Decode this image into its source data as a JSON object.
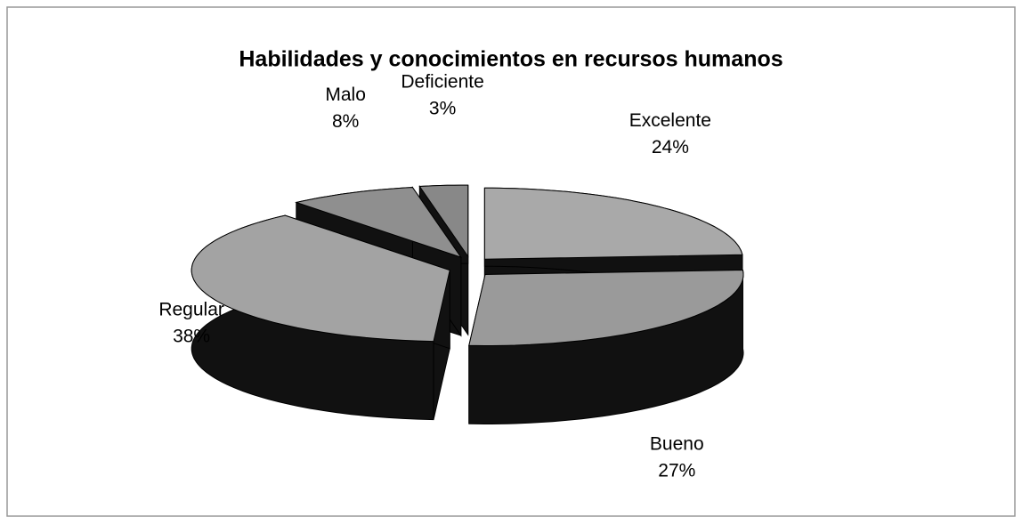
{
  "chart_data": {
    "type": "pie",
    "title": "Habilidades y conocimientos en recursos humanos",
    "categories": [
      "Excelente",
      "Bueno",
      "Regular",
      "Malo",
      "Deficiente"
    ],
    "values": [
      24,
      27,
      38,
      8,
      3
    ],
    "value_labels": [
      "24%",
      "27%",
      "38%",
      "8%",
      "3%"
    ],
    "colors": [
      "#a9a9a9",
      "#9a9a9a",
      "#a3a3a3",
      "#8f8f8f",
      "#888888"
    ]
  }
}
